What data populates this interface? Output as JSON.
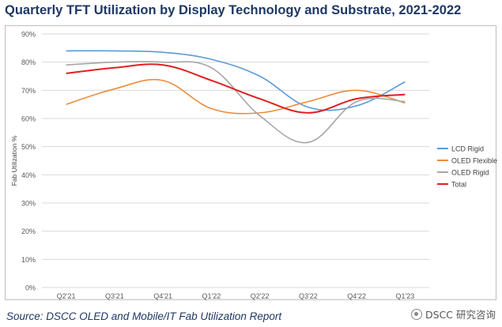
{
  "header": {
    "title": "Quarterly TFT Utilization by Display Technology and Substrate, 2021-2022"
  },
  "footer": {
    "source": "Source: DSCC OLED and Mobile/IT Fab Utilization Report",
    "watermark": "DSCC 研究咨询"
  },
  "colors": {
    "title": "#1f3864",
    "lcd_rigid": "#5b9bd5",
    "oled_flexible": "#ed8c3a",
    "oled_rigid": "#a6a6a6",
    "total": "#e02020",
    "grid": "#d9d9d9"
  },
  "chart_data": {
    "type": "line",
    "title": "Quarterly TFT Utilization by Display Technology and Substrate, 2021-2022",
    "xlabel": "",
    "ylabel": "Fab Utilization %",
    "categories": [
      "Q2'21",
      "Q3'21",
      "Q4'21",
      "Q1'22",
      "Q2'22",
      "Q3'22",
      "Q4'22",
      "Q1'23"
    ],
    "ylim": [
      0,
      90
    ],
    "yticks": [
      0,
      10,
      20,
      30,
      40,
      50,
      60,
      70,
      80,
      90
    ],
    "ytick_labels": [
      "0%",
      "10%",
      "20%",
      "30%",
      "40%",
      "50%",
      "60%",
      "70%",
      "80%",
      "90%"
    ],
    "grid": true,
    "legend": "right",
    "series": [
      {
        "name": "LCD Rigid",
        "color": "#5b9bd5",
        "values": [
          84.0,
          84.0,
          83.5,
          81.0,
          75.0,
          64.0,
          64.5,
          73.0
        ]
      },
      {
        "name": "OLED Flexible",
        "color": "#ed8c3a",
        "values": [
          65.0,
          70.5,
          73.5,
          63.5,
          62.0,
          66.0,
          70.0,
          65.5
        ]
      },
      {
        "name": "OLED Rigid",
        "color": "#a6a6a6",
        "values": [
          79.0,
          80.0,
          80.0,
          78.0,
          61.0,
          51.5,
          66.0,
          66.0
        ]
      },
      {
        "name": "Total",
        "color": "#e02020",
        "values": [
          76.0,
          78.0,
          79.0,
          73.5,
          67.0,
          62.0,
          67.0,
          68.5
        ]
      }
    ]
  }
}
